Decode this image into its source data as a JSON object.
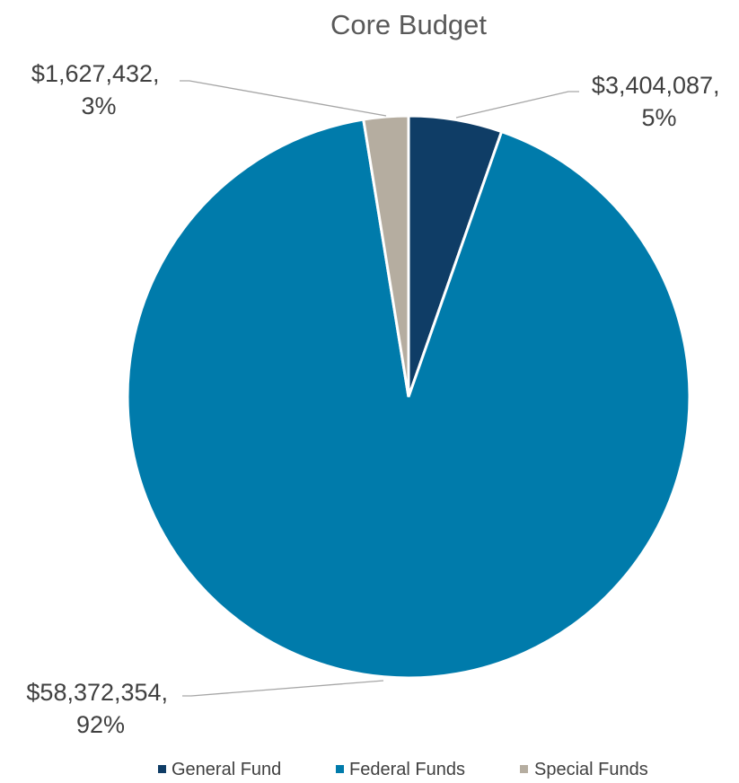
{
  "chart_data": {
    "type": "pie",
    "title": "Core Budget",
    "start_angle_deg": 0,
    "direction": "clockwise",
    "legend": "bottom",
    "slices": [
      {
        "name": "General Fund",
        "value": 3404087,
        "value_label": "$3,404,087,",
        "pct_label": "5%",
        "color": "#0f3d66"
      },
      {
        "name": "Federal Funds",
        "value": 58372354,
        "value_label": "$58,372,354,",
        "pct_label": "92%",
        "color": "#007bab"
      },
      {
        "name": "Special Funds",
        "value": 1627432,
        "value_label": "$1,627,432,",
        "pct_label": "3%",
        "color": "#b5ada0"
      }
    ]
  }
}
